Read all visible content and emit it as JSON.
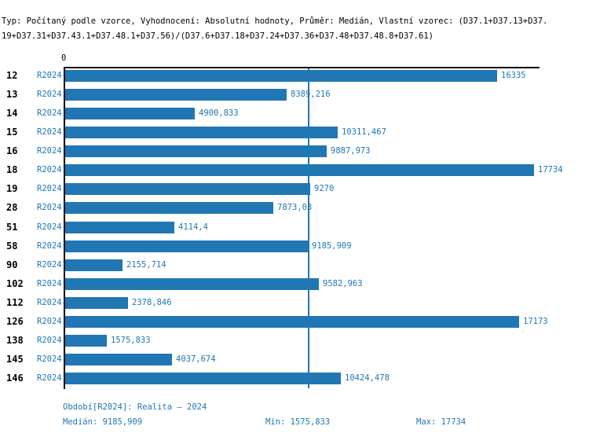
{
  "header": {
    "line1": "Typ: Počítaný podle vzorce, Vyhodnocení: Absolutní hodnoty, Průměr: Medián, Vlastní vzorec: (D37.1+D37.13+D37.",
    "line2": "19+D37.31+D37.43.1+D37.48.1+D37.56)/(D37.6+D37.18+D37.24+D37.36+D37.48+D37.48.8+D37.61)"
  },
  "chart_data": {
    "type": "bar",
    "orientation": "horizontal",
    "title": "",
    "xlabel": "",
    "ylabel": "",
    "xlim": [
      0,
      17734
    ],
    "x_tick_labels": [
      "0"
    ],
    "legend": "none",
    "grid": "none",
    "series_label": "R2024",
    "bar_color": "#2077b4",
    "median_reference_line": 9185.909,
    "categories": [
      "12",
      "13",
      "14",
      "15",
      "16",
      "18",
      "19",
      "28",
      "51",
      "58",
      "90",
      "102",
      "112",
      "126",
      "138",
      "145",
      "146"
    ],
    "values": [
      16335,
      8389.216,
      4900.833,
      10311.467,
      9887.973,
      17734,
      9270,
      7873.03,
      4114.4,
      9185.909,
      2155.714,
      9582.963,
      2378.846,
      17173,
      1575.833,
      4037.674,
      10424.478
    ],
    "value_labels": [
      "16335",
      "8389,216",
      "4900,833",
      "10311,467",
      "9887,973",
      "17734",
      "9270",
      "7873,03",
      "4114,4",
      "9185,909",
      "2155,714",
      "9582,963",
      "2378,846",
      "17173",
      "1575,833",
      "4037,674",
      "10424,478"
    ]
  },
  "footer": {
    "period_label": "Období[R2024]: Realita – 2024",
    "median_label": "Medián: 9185,909",
    "min_label": "Min: 1575,833",
    "max_label": "Max: 17734"
  },
  "colors": {
    "accent_blue": "#2077b4",
    "text_black": "#000000",
    "background": "#ffffff"
  }
}
